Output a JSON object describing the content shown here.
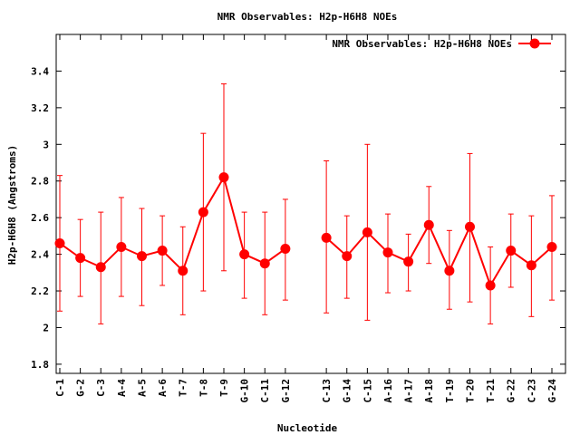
{
  "chart_data": {
    "type": "line",
    "title": "NMR Observables: H2p-H6H8 NOEs",
    "xlabel": "Nucleotide",
    "ylabel": "H2p-H6H8 (Angstroms)",
    "ylim": [
      1.75,
      3.6
    ],
    "yticks": [
      1.8,
      2,
      2.2,
      2.4,
      2.6,
      2.8,
      3,
      3.2,
      3.4
    ],
    "ytick_labels": [
      "1.8",
      "2",
      "2.2",
      "2.4",
      "2.6",
      "2.8",
      "3",
      "3.2",
      "3.4"
    ],
    "grid": false,
    "legend": "top-right",
    "series": [
      {
        "name": "NMR Observables: H2p-H6H8 NOEs",
        "color": "#ff0000",
        "segments": [
          {
            "categories": [
              "C-1",
              "G-2",
              "C-3",
              "A-4",
              "A-5",
              "A-6",
              "T-7",
              "T-8",
              "T-9",
              "G-10",
              "C-11",
              "G-12"
            ],
            "values": [
              2.46,
              2.38,
              2.33,
              2.44,
              2.39,
              2.42,
              2.31,
              2.63,
              2.82,
              2.4,
              2.35,
              2.43
            ],
            "err_low": [
              2.09,
              2.17,
              2.02,
              2.17,
              2.12,
              2.23,
              2.07,
              2.2,
              2.31,
              2.16,
              2.07,
              2.15
            ],
            "err_high": [
              2.83,
              2.59,
              2.63,
              2.71,
              2.65,
              2.61,
              2.55,
              3.06,
              3.33,
              2.63,
              2.63,
              2.7
            ]
          },
          {
            "categories": [
              "C-13",
              "G-14",
              "C-15",
              "A-16",
              "A-17",
              "A-18",
              "T-19",
              "T-20",
              "T-21",
              "G-22",
              "C-23",
              "G-24"
            ],
            "values": [
              2.49,
              2.39,
              2.52,
              2.41,
              2.36,
              2.56,
              2.31,
              2.55,
              2.23,
              2.42,
              2.34,
              2.44
            ],
            "err_low": [
              2.08,
              2.16,
              2.04,
              2.19,
              2.2,
              2.35,
              2.1,
              2.14,
              2.02,
              2.22,
              2.06,
              2.15
            ],
            "err_high": [
              2.91,
              2.61,
              3.0,
              2.62,
              2.51,
              2.77,
              2.53,
              2.95,
              2.44,
              2.62,
              2.61,
              2.72
            ]
          }
        ]
      }
    ]
  }
}
